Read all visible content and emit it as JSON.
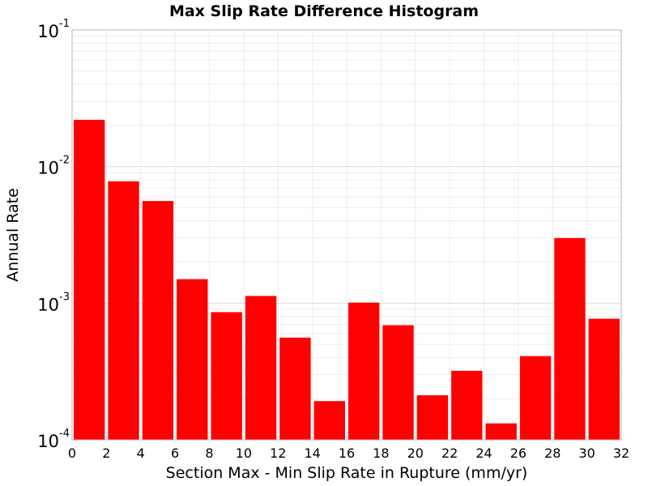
{
  "chart_data": {
    "type": "bar",
    "title": "Max Slip Rate Difference Histogram",
    "xlabel": "Section Max - Min Slip Rate in Rupture (mm/yr)",
    "ylabel": "Annual Rate",
    "xlim": [
      0,
      32
    ],
    "ylim": [
      0.0001,
      0.1
    ],
    "yscale": "log",
    "grid": true,
    "bar_color": "#ff0000",
    "bin_width": 2,
    "x_ticks": [
      "0",
      "2",
      "4",
      "6",
      "8",
      "10",
      "12",
      "14",
      "16",
      "18",
      "20",
      "22",
      "24",
      "26",
      "28",
      "30",
      "32"
    ],
    "y_ticks": [
      {
        "base": "10",
        "exp": "-4"
      },
      {
        "base": "10",
        "exp": "-3"
      },
      {
        "base": "10",
        "exp": "-2"
      },
      {
        "base": "10",
        "exp": "-1"
      }
    ],
    "x": [
      1,
      3,
      5,
      7,
      9,
      11,
      13,
      15,
      17,
      19,
      21,
      23,
      25,
      27,
      29,
      31
    ],
    "values": [
      0.022,
      0.0078,
      0.0056,
      0.0015,
      0.00086,
      0.00113,
      0.00056,
      0.000192,
      0.00101,
      0.00069,
      0.000212,
      0.00032,
      0.000132,
      0.00041,
      0.003,
      0.00077
    ]
  }
}
